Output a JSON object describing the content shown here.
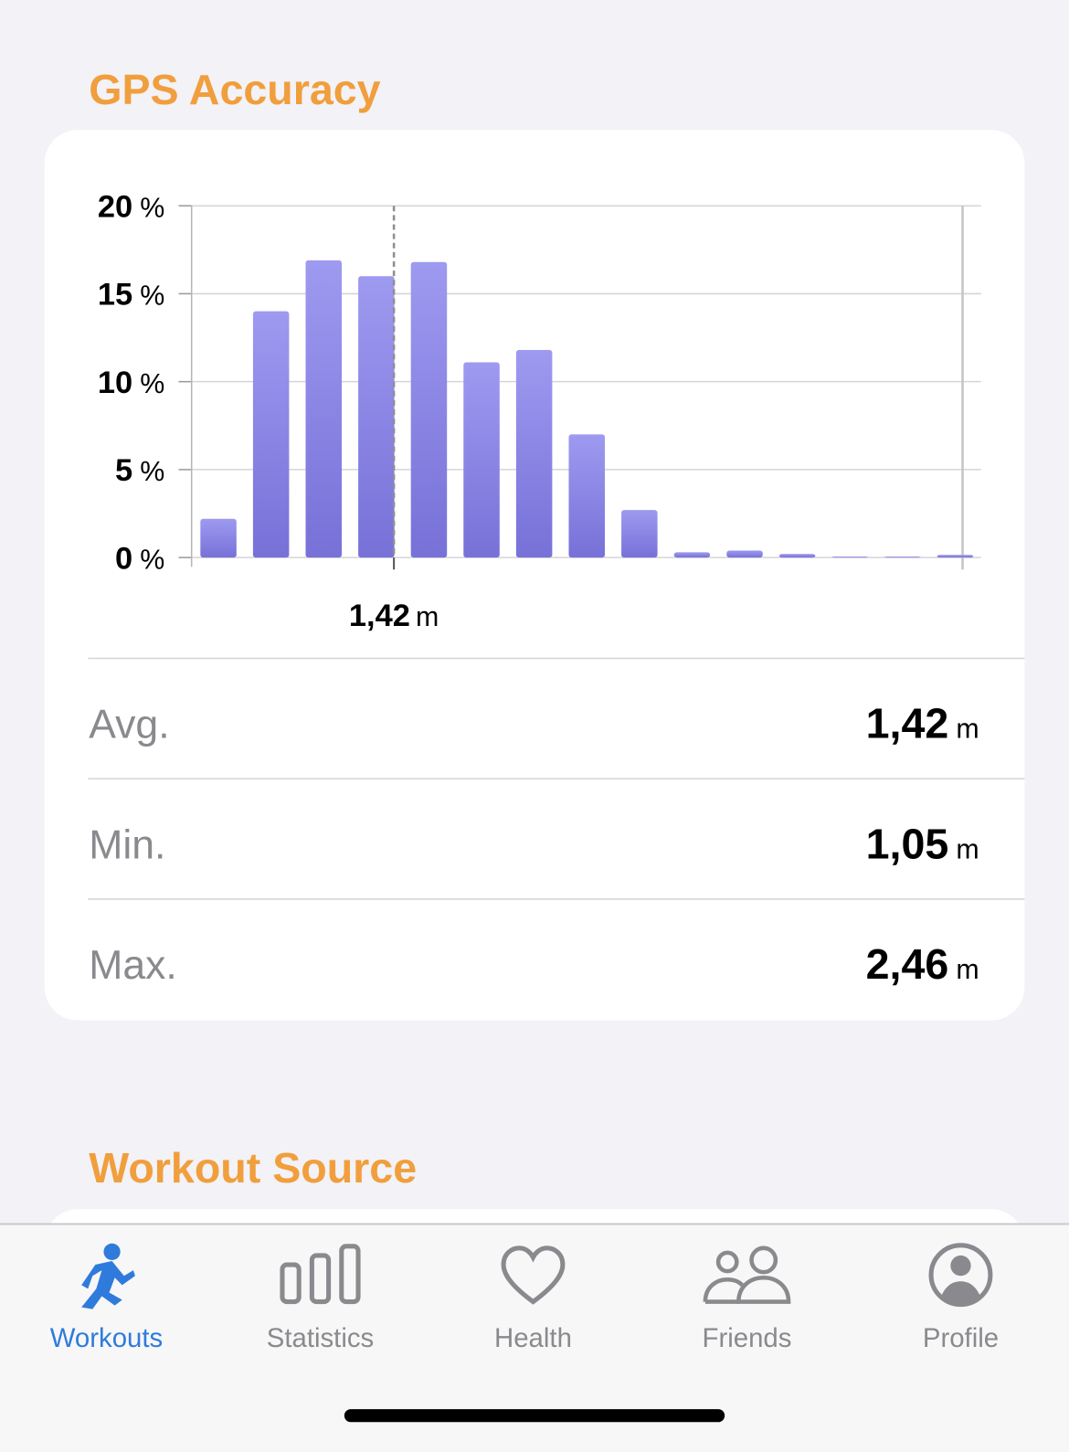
{
  "gps_title": "GPS Accuracy",
  "chart_data": {
    "type": "bar",
    "categories": [
      null,
      null,
      null,
      null,
      null,
      null,
      null,
      null,
      null,
      null,
      null,
      null,
      null,
      null,
      null
    ],
    "values": [
      2.2,
      14,
      16.9,
      16,
      16.8,
      11.1,
      11.8,
      7,
      2.7,
      0.3,
      0.4,
      0.2,
      0.05,
      0.05,
      0.15
    ],
    "color": "#8a85e4",
    "ylim": [
      0,
      20
    ],
    "yticks": [
      0,
      5,
      10,
      15,
      20
    ],
    "y_unit": "%",
    "grid": true,
    "xlim": [
      1.05,
      2.46
    ],
    "marker": {
      "value": 1.42,
      "label": "1,42",
      "unit": "m"
    }
  },
  "stats": [
    {
      "label": "Avg.",
      "value": "1,42",
      "unit": "m"
    },
    {
      "label": "Min.",
      "value": "1,05",
      "unit": "m"
    },
    {
      "label": "Max.",
      "value": "2,46",
      "unit": "m"
    }
  ],
  "workout_source_title": "Workout Source",
  "tabs": [
    {
      "label": "Workouts",
      "active": true
    },
    {
      "label": "Statistics",
      "active": false
    },
    {
      "label": "Health",
      "active": false
    },
    {
      "label": "Friends",
      "active": false
    },
    {
      "label": "Profile",
      "active": false
    }
  ]
}
